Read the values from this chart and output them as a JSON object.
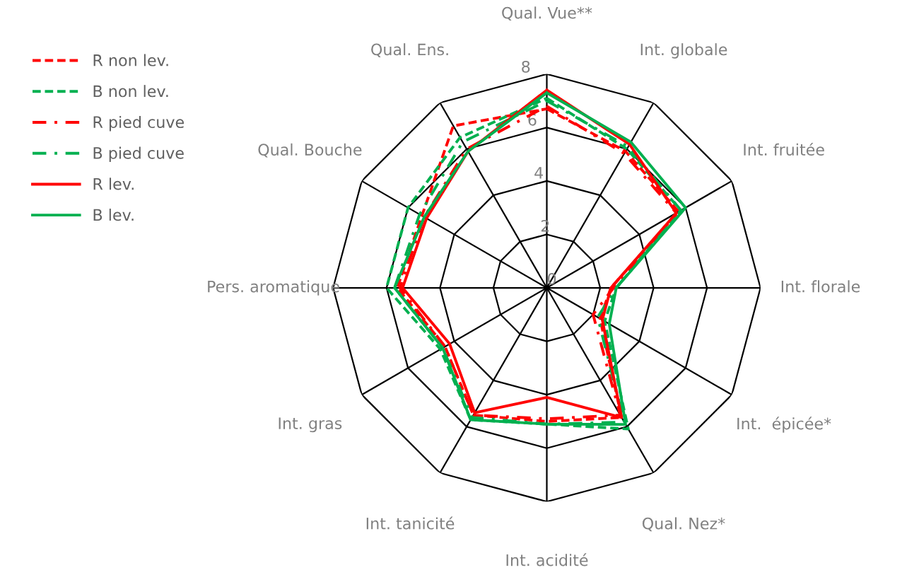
{
  "chart_data": {
    "type": "radar",
    "categories": [
      "Qual. Vue**",
      "Int. globale",
      "Int. fruitée",
      "Int. florale",
      "Int.  épicée*",
      "Qual. Nez*",
      "Int. acidité",
      "Int. tanicité",
      "Int. gras",
      "Pers. aromatique",
      "Qual. Bouche",
      "Qual. Ens."
    ],
    "ylim": [
      0,
      8
    ],
    "yticks": [
      0,
      2,
      4,
      6,
      8
    ],
    "grid": true,
    "legend": "left",
    "marker": "none",
    "series": [
      {
        "name": "R non lev.",
        "color": "#ff0000",
        "line_style": "dashed",
        "values": [
          6.7,
          5.9,
          5.7,
          2.4,
          2.3,
          5.6,
          5.0,
          5.5,
          4.4,
          5.6,
          5.4,
          7.0
        ]
      },
      {
        "name": "B non lev.",
        "color": "#00b050",
        "line_style": "dashed",
        "values": [
          7.1,
          6.0,
          5.8,
          2.6,
          2.5,
          6.1,
          5.1,
          5.7,
          4.6,
          6.0,
          6.0,
          6.5
        ]
      },
      {
        "name": "R pied cuve",
        "color": "#ff0000",
        "line_style": "dashdot",
        "values": [
          6.8,
          5.8,
          5.6,
          2.5,
          2.0,
          5.5,
          4.9,
          5.5,
          4.4,
          5.5,
          5.3,
          6.0
        ]
      },
      {
        "name": "B pied cuve",
        "color": "#00b050",
        "line_style": "dashdot",
        "values": [
          7.0,
          6.1,
          5.8,
          2.6,
          2.2,
          5.8,
          5.1,
          5.6,
          4.5,
          5.7,
          5.5,
          6.3
        ]
      },
      {
        "name": "R lev.",
        "color": "#ff0000",
        "line_style": "solid",
        "values": [
          7.4,
          6.2,
          5.6,
          2.4,
          2.4,
          5.6,
          4.1,
          5.4,
          4.2,
          5.4,
          5.2,
          5.9
        ]
      },
      {
        "name": "B lev.",
        "color": "#00b050",
        "line_style": "solid",
        "values": [
          7.3,
          6.3,
          6.0,
          2.6,
          2.7,
          5.9,
          5.1,
          5.7,
          4.5,
          5.7,
          5.3,
          5.9
        ]
      }
    ]
  }
}
